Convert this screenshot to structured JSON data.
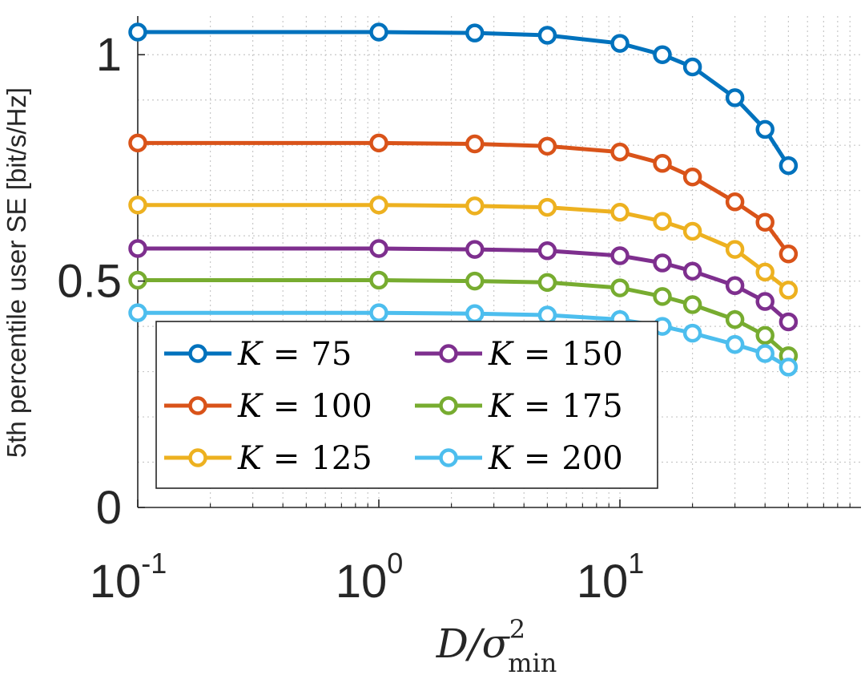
{
  "chart_data": {
    "type": "line",
    "title": "",
    "xlabel": "D/σ²_min",
    "xlabel_parts": {
      "base": "D/σ",
      "sup": "2",
      "sub": "min"
    },
    "ylabel": "5th percentile user SE [bit/s/Hz]",
    "xscale": "log",
    "xlim": [
      0.1,
      100
    ],
    "ylim": [
      0,
      1.05
    ],
    "grid": true,
    "x": [
      0.1,
      1,
      2.5,
      5,
      10,
      15,
      20,
      30,
      40,
      50
    ],
    "x_ticks": [
      {
        "value": 0.1,
        "base": "10",
        "exp": "-1"
      },
      {
        "value": 1,
        "base": "10",
        "exp": "0"
      },
      {
        "value": 10,
        "base": "10",
        "exp": "1"
      }
    ],
    "y_ticks": [
      {
        "value": 0,
        "label": "0"
      },
      {
        "value": 0.5,
        "label": "0.5"
      },
      {
        "value": 1,
        "label": "1"
      }
    ],
    "legend_position": "bottom-left",
    "series": [
      {
        "name": "K = 75",
        "var": "K",
        "eq": "=",
        "num": "75",
        "color": "#0072BD",
        "values": [
          1.05,
          1.05,
          1.048,
          1.043,
          1.025,
          1.0,
          0.973,
          0.905,
          0.835,
          0.755
        ]
      },
      {
        "name": "K = 100",
        "var": "K",
        "eq": "=",
        "num": "100",
        "color": "#D95319",
        "values": [
          0.805,
          0.805,
          0.803,
          0.798,
          0.785,
          0.76,
          0.73,
          0.675,
          0.63,
          0.56
        ]
      },
      {
        "name": "K = 125",
        "var": "K",
        "eq": "=",
        "num": "125",
        "color": "#EDB120",
        "values": [
          0.668,
          0.668,
          0.666,
          0.663,
          0.652,
          0.632,
          0.61,
          0.57,
          0.52,
          0.48
        ]
      },
      {
        "name": "K = 150",
        "var": "K",
        "eq": "=",
        "num": "150",
        "color": "#7E2F8E",
        "values": [
          0.572,
          0.572,
          0.57,
          0.567,
          0.556,
          0.54,
          0.522,
          0.49,
          0.455,
          0.41
        ]
      },
      {
        "name": "K = 175",
        "var": "K",
        "eq": "=",
        "num": "175",
        "color": "#77AC30",
        "values": [
          0.502,
          0.502,
          0.5,
          0.497,
          0.485,
          0.466,
          0.448,
          0.415,
          0.38,
          0.335
        ]
      },
      {
        "name": "K = 200",
        "var": "K",
        "eq": "=",
        "num": "200",
        "color": "#4DBEEE",
        "values": [
          0.43,
          0.43,
          0.428,
          0.425,
          0.415,
          0.4,
          0.385,
          0.36,
          0.34,
          0.31
        ]
      }
    ]
  }
}
